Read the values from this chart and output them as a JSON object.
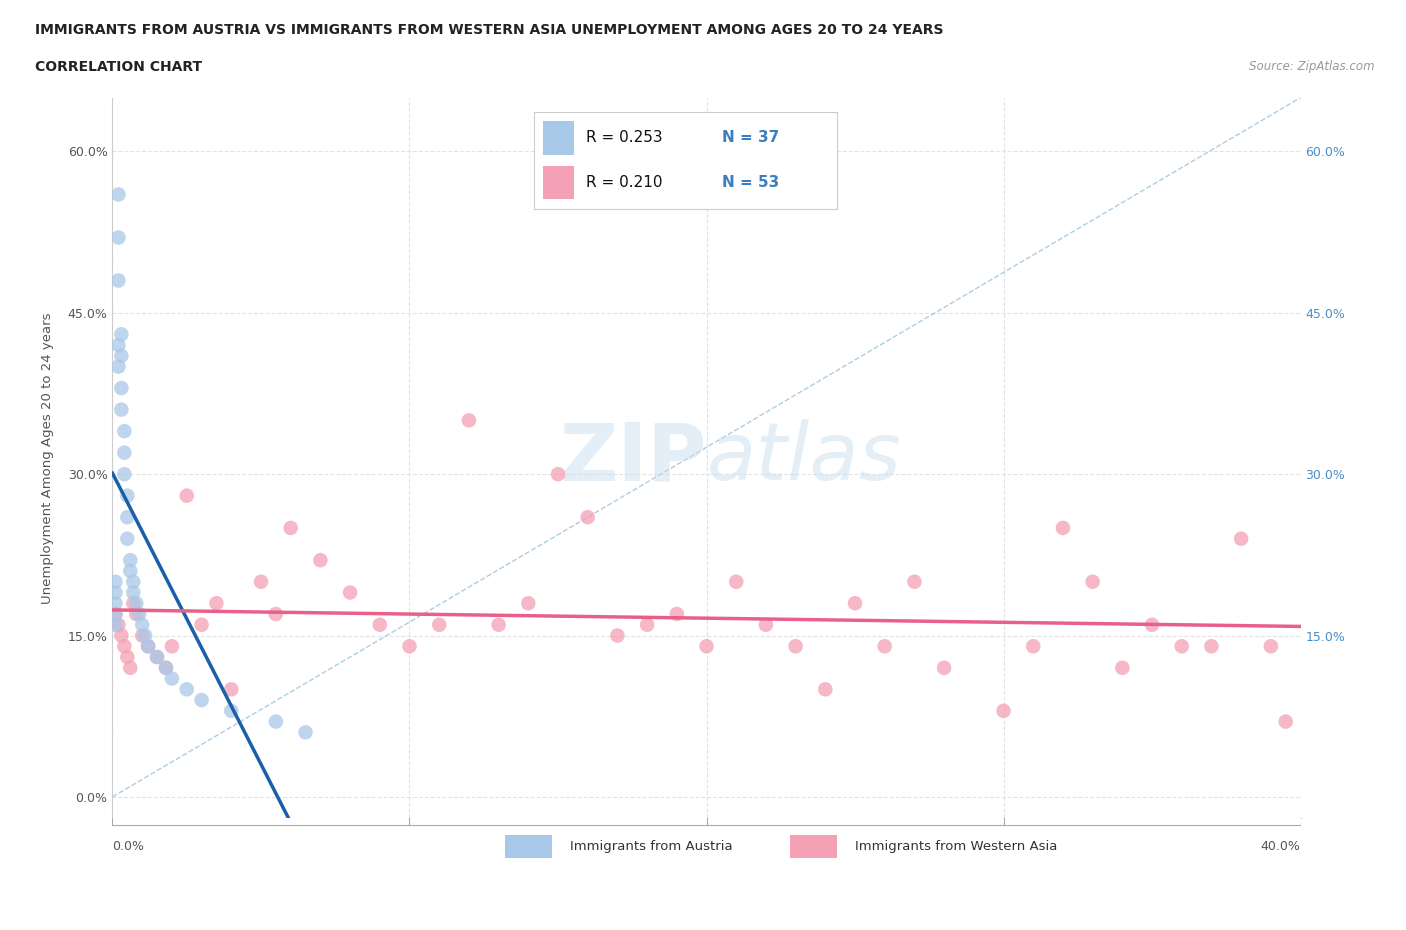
{
  "title_line1": "IMMIGRANTS FROM AUSTRIA VS IMMIGRANTS FROM WESTERN ASIA UNEMPLOYMENT AMONG AGES 20 TO 24 YEARS",
  "title_line2": "CORRELATION CHART",
  "source": "Source: ZipAtlas.com",
  "ylabel": "Unemployment Among Ages 20 to 24 years",
  "xlabel_austria": "Immigrants from Austria",
  "xlabel_western_asia": "Immigrants from Western Asia",
  "austria_R": 0.253,
  "austria_N": 37,
  "western_asia_R": 0.21,
  "western_asia_N": 53,
  "xlim": [
    0.0,
    0.4
  ],
  "ylim": [
    -0.02,
    0.65
  ],
  "xticks": [
    0.0,
    0.1,
    0.2,
    0.3,
    0.4
  ],
  "yticks": [
    0.0,
    0.15,
    0.3,
    0.45,
    0.6
  ],
  "ytick_labels": [
    "0.0%",
    "15.0%",
    "30.0%",
    "45.0%",
    "60.0%"
  ],
  "xtick_labels": [
    "0.0%",
    "",
    "",
    "",
    "40.0%"
  ],
  "right_ytick_labels": [
    "15.0%",
    "30.0%",
    "45.0%",
    "60.0%"
  ],
  "blue_color": "#a8c8e8",
  "pink_color": "#f4a0b5",
  "blue_line_color": "#1a5fa8",
  "pink_line_color": "#e8608a",
  "dash_color": "#aec8e8",
  "watermark_color": "#d8e8f0",
  "background_color": "#ffffff",
  "grid_color": "#e0e0e0",
  "austria_x": [
    0.001,
    0.001,
    0.001,
    0.001,
    0.001,
    0.002,
    0.002,
    0.002,
    0.002,
    0.002,
    0.003,
    0.003,
    0.003,
    0.003,
    0.004,
    0.004,
    0.004,
    0.005,
    0.005,
    0.005,
    0.006,
    0.006,
    0.007,
    0.007,
    0.008,
    0.009,
    0.01,
    0.011,
    0.012,
    0.015,
    0.018,
    0.02,
    0.025,
    0.03,
    0.04,
    0.055,
    0.065
  ],
  "austria_y": [
    0.2,
    0.19,
    0.18,
    0.17,
    0.16,
    0.56,
    0.52,
    0.48,
    0.42,
    0.4,
    0.43,
    0.41,
    0.38,
    0.36,
    0.34,
    0.32,
    0.3,
    0.28,
    0.26,
    0.24,
    0.22,
    0.21,
    0.2,
    0.19,
    0.18,
    0.17,
    0.16,
    0.15,
    0.14,
    0.13,
    0.12,
    0.11,
    0.1,
    0.09,
    0.08,
    0.07,
    0.06
  ],
  "western_x": [
    0.001,
    0.002,
    0.003,
    0.004,
    0.005,
    0.006,
    0.007,
    0.008,
    0.01,
    0.012,
    0.015,
    0.018,
    0.02,
    0.025,
    0.03,
    0.035,
    0.04,
    0.05,
    0.055,
    0.06,
    0.07,
    0.08,
    0.09,
    0.1,
    0.11,
    0.12,
    0.13,
    0.14,
    0.15,
    0.16,
    0.17,
    0.18,
    0.19,
    0.2,
    0.21,
    0.22,
    0.23,
    0.24,
    0.25,
    0.26,
    0.27,
    0.28,
    0.3,
    0.31,
    0.32,
    0.33,
    0.34,
    0.35,
    0.36,
    0.37,
    0.38,
    0.39,
    0.395
  ],
  "western_y": [
    0.17,
    0.16,
    0.15,
    0.14,
    0.13,
    0.12,
    0.18,
    0.17,
    0.15,
    0.14,
    0.13,
    0.12,
    0.14,
    0.28,
    0.16,
    0.18,
    0.1,
    0.2,
    0.17,
    0.25,
    0.22,
    0.19,
    0.16,
    0.14,
    0.16,
    0.35,
    0.16,
    0.18,
    0.3,
    0.26,
    0.15,
    0.16,
    0.17,
    0.14,
    0.2,
    0.16,
    0.14,
    0.1,
    0.18,
    0.14,
    0.2,
    0.12,
    0.08,
    0.14,
    0.25,
    0.2,
    0.12,
    0.16,
    0.14,
    0.14,
    0.24,
    0.14,
    0.07
  ]
}
